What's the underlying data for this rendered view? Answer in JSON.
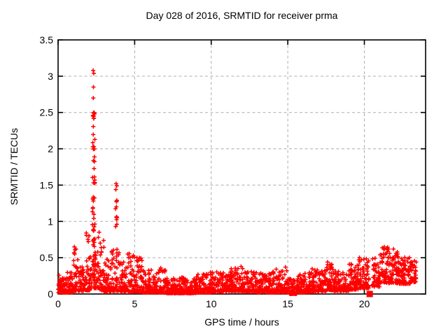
{
  "chart_data": {
    "type": "scatter",
    "title": "Day 028 of 2016, SRMTID for receiver prma",
    "xlabel": "GPS time / hours",
    "ylabel": "SRMTID / TECUs",
    "xlim": [
      0,
      24
    ],
    "ylim": [
      0,
      3.5
    ],
    "xticks": [
      0,
      5,
      10,
      15,
      20
    ],
    "xtick_labels": [
      "0",
      "5",
      "10",
      "15",
      "20"
    ],
    "yticks": [
      0,
      0.5,
      1,
      1.5,
      2,
      2.5,
      3,
      3.5
    ],
    "ytick_labels": [
      "0",
      "0.5",
      "1",
      "1.5",
      "2",
      "2.5",
      "3",
      "3.5"
    ],
    "grid": true,
    "legend": "none",
    "marker": "plus",
    "series_color": "#ff0000",
    "grid_color": "#adadad",
    "axis_color": "#000000",
    "background": "#ffffff",
    "seed": 42,
    "noise_bins": [
      {
        "x0": 0.0,
        "x1": 0.5,
        "n": 55,
        "ymin": 0.02,
        "ymax": 0.26,
        "k": 2.2
      },
      {
        "x0": 0.5,
        "x1": 1.0,
        "n": 55,
        "ymin": 0.02,
        "ymax": 0.3,
        "k": 2.4
      },
      {
        "x0": 1.0,
        "x1": 1.3,
        "n": 35,
        "ymin": 0.04,
        "ymax": 0.66,
        "k": 2.8
      },
      {
        "x0": 1.3,
        "x1": 1.8,
        "n": 50,
        "ymin": 0.04,
        "ymax": 0.4,
        "k": 2.4
      },
      {
        "x0": 1.8,
        "x1": 2.1,
        "n": 35,
        "ymin": 0.05,
        "ymax": 0.85,
        "k": 2.6
      },
      {
        "x0": 2.1,
        "x1": 2.6,
        "n": 60,
        "ymin": 0.08,
        "ymax": 0.6,
        "k": 2.0
      },
      {
        "x0": 2.6,
        "x1": 3.0,
        "n": 40,
        "ymin": 0.05,
        "ymax": 0.85,
        "k": 2.6
      },
      {
        "x0": 3.0,
        "x1": 3.5,
        "n": 50,
        "ymin": 0.03,
        "ymax": 0.48,
        "k": 2.4
      },
      {
        "x0": 3.5,
        "x1": 4.0,
        "n": 50,
        "ymin": 0.04,
        "ymax": 0.65,
        "k": 2.8
      },
      {
        "x0": 4.0,
        "x1": 4.5,
        "n": 50,
        "ymin": 0.03,
        "ymax": 0.45,
        "k": 2.4
      },
      {
        "x0": 4.5,
        "x1": 5.0,
        "n": 50,
        "ymin": 0.03,
        "ymax": 0.56,
        "k": 2.6
      },
      {
        "x0": 5.0,
        "x1": 5.5,
        "n": 50,
        "ymin": 0.03,
        "ymax": 0.5,
        "k": 2.8
      },
      {
        "x0": 5.5,
        "x1": 6.5,
        "n": 100,
        "ymin": 0.02,
        "ymax": 0.33,
        "k": 2.6
      },
      {
        "x0": 6.5,
        "x1": 7.0,
        "n": 50,
        "ymin": 0.02,
        "ymax": 0.36,
        "k": 2.6
      },
      {
        "x0": 7.0,
        "x1": 8.0,
        "n": 100,
        "ymin": 0.01,
        "ymax": 0.22,
        "k": 2.4
      },
      {
        "x0": 8.0,
        "x1": 9.0,
        "n": 100,
        "ymin": 0.01,
        "ymax": 0.24,
        "k": 2.4
      },
      {
        "x0": 9.0,
        "x1": 10.0,
        "n": 100,
        "ymin": 0.02,
        "ymax": 0.28,
        "k": 2.4
      },
      {
        "x0": 10.0,
        "x1": 11.0,
        "n": 100,
        "ymin": 0.03,
        "ymax": 0.31,
        "k": 2.2
      },
      {
        "x0": 11.0,
        "x1": 12.0,
        "n": 100,
        "ymin": 0.04,
        "ymax": 0.36,
        "k": 2.2
      },
      {
        "x0": 12.0,
        "x1": 13.0,
        "n": 100,
        "ymin": 0.03,
        "ymax": 0.31,
        "k": 2.2
      },
      {
        "x0": 13.0,
        "x1": 14.0,
        "n": 100,
        "ymin": 0.02,
        "ymax": 0.3,
        "k": 2.3
      },
      {
        "x0": 14.0,
        "x1": 15.0,
        "n": 100,
        "ymin": 0.02,
        "ymax": 0.37,
        "k": 2.4
      },
      {
        "x0": 15.0,
        "x1": 15.6,
        "n": 55,
        "ymin": 0.0,
        "ymax": 0.22,
        "k": 2.2
      },
      {
        "x0": 15.6,
        "x1": 16.5,
        "n": 90,
        "ymin": 0.02,
        "ymax": 0.3,
        "k": 2.3
      },
      {
        "x0": 16.5,
        "x1": 17.5,
        "n": 100,
        "ymin": 0.03,
        "ymax": 0.35,
        "k": 2.2
      },
      {
        "x0": 17.5,
        "x1": 18.0,
        "n": 50,
        "ymin": 0.05,
        "ymax": 0.42,
        "k": 2.2
      },
      {
        "x0": 18.0,
        "x1": 19.0,
        "n": 100,
        "ymin": 0.04,
        "ymax": 0.32,
        "k": 2.2
      },
      {
        "x0": 19.0,
        "x1": 19.6,
        "n": 60,
        "ymin": 0.06,
        "ymax": 0.42,
        "k": 1.9
      },
      {
        "x0": 19.6,
        "x1": 20.3,
        "n": 70,
        "ymin": 0.08,
        "ymax": 0.52,
        "k": 1.9
      },
      {
        "x0": 20.5,
        "x1": 21.0,
        "n": 50,
        "ymin": 0.1,
        "ymax": 0.5,
        "k": 1.7
      },
      {
        "x0": 21.0,
        "x1": 21.6,
        "n": 60,
        "ymin": 0.15,
        "ymax": 0.66,
        "k": 1.7
      },
      {
        "x0": 21.6,
        "x1": 22.2,
        "n": 60,
        "ymin": 0.15,
        "ymax": 0.58,
        "k": 1.7
      },
      {
        "x0": 22.2,
        "x1": 23.0,
        "n": 80,
        "ymin": 0.14,
        "ymax": 0.52,
        "k": 1.8
      },
      {
        "x0": 23.0,
        "x1": 23.4,
        "n": 40,
        "ymin": 0.16,
        "ymax": 0.46,
        "k": 1.7
      }
    ],
    "spike_columns": [
      {
        "xc": 2.32,
        "w": 0.16,
        "n": 50,
        "ymin": 0.35,
        "ymax": 2.55
      },
      {
        "xc": 3.8,
        "w": 0.1,
        "n": 12,
        "ymin": 0.35,
        "ymax": 1.3
      }
    ],
    "outlier_points": [
      [
        2.29,
        3.08
      ],
      [
        2.33,
        3.04
      ],
      [
        2.31,
        2.85
      ],
      [
        2.3,
        2.7
      ],
      [
        2.36,
        2.5
      ],
      [
        2.27,
        2.46
      ],
      [
        2.34,
        2.42
      ],
      [
        3.79,
        1.52
      ],
      [
        3.83,
        1.49
      ],
      [
        3.77,
        1.44
      ],
      [
        3.81,
        1.2
      ],
      [
        3.85,
        1.05
      ],
      [
        1.06,
        0.65
      ],
      [
        1.1,
        0.61
      ],
      [
        1.08,
        0.55
      ],
      [
        2.02,
        0.8
      ],
      [
        1.97,
        0.72
      ],
      [
        2.68,
        0.85
      ],
      [
        2.63,
        0.78
      ],
      [
        2.75,
        0.7
      ],
      [
        4.55,
        0.55
      ],
      [
        4.6,
        0.5
      ],
      [
        5.15,
        0.5
      ],
      [
        5.2,
        0.45
      ],
      [
        6.7,
        0.36
      ],
      [
        9.95,
        0.3
      ],
      [
        11.95,
        0.38
      ],
      [
        12.05,
        0.35
      ],
      [
        14.85,
        0.37
      ],
      [
        17.6,
        0.44
      ],
      [
        21.3,
        0.65
      ],
      [
        21.45,
        0.63
      ],
      [
        21.9,
        0.62
      ],
      [
        22.95,
        0.5
      ]
    ],
    "square_points": [
      {
        "x": 15.5,
        "y": 0,
        "size": 5
      },
      {
        "x": 20.35,
        "y": 0,
        "size": 9
      }
    ]
  }
}
